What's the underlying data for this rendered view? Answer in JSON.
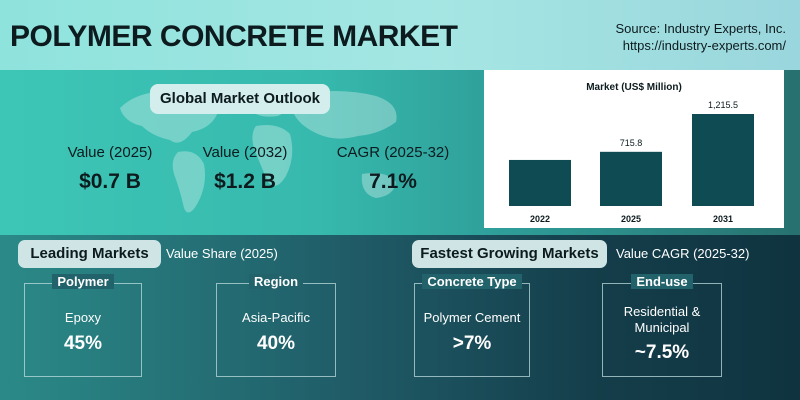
{
  "header": {
    "title": "POLYMER CONCRETE MARKET",
    "source_line1": "Source: Industry Experts, Inc.",
    "source_line2": "https://industry-experts.com/"
  },
  "outlook": {
    "label": "Global Market Outlook",
    "metrics": [
      {
        "label": "Value (2025)",
        "value": "$0.7 B"
      },
      {
        "label": "Value (2032)",
        "value": "$1.2 B"
      },
      {
        "label": "CAGR (2025-32)",
        "value": "7.1%"
      }
    ]
  },
  "chart_data": {
    "type": "bar",
    "title": "Market (US$ Million)",
    "categories": [
      "2022",
      "2025",
      "2031"
    ],
    "values": [
      null,
      715.8,
      1215.5
    ],
    "data_labels": [
      "",
      "715.8",
      "1,215.5"
    ],
    "bar_color": "#0f4b52",
    "grid": false,
    "legend": "none"
  },
  "leading": {
    "label": "Leading Markets",
    "note": "Value Share (2025)",
    "cards": [
      {
        "category": "Polymer",
        "name": "Epoxy",
        "value": "45%"
      },
      {
        "category": "Region",
        "name": "Asia-Pacific",
        "value": "40%"
      }
    ]
  },
  "fastest": {
    "label": "Fastest Growing Markets",
    "note": "Value CAGR (2025-32)",
    "cards": [
      {
        "category": "Concrete Type",
        "name": "Polymer Cement",
        "value": ">7%"
      },
      {
        "category": "End-use",
        "name": "Residential &",
        "name2": "Municipal",
        "value": "~7.5%"
      }
    ]
  }
}
